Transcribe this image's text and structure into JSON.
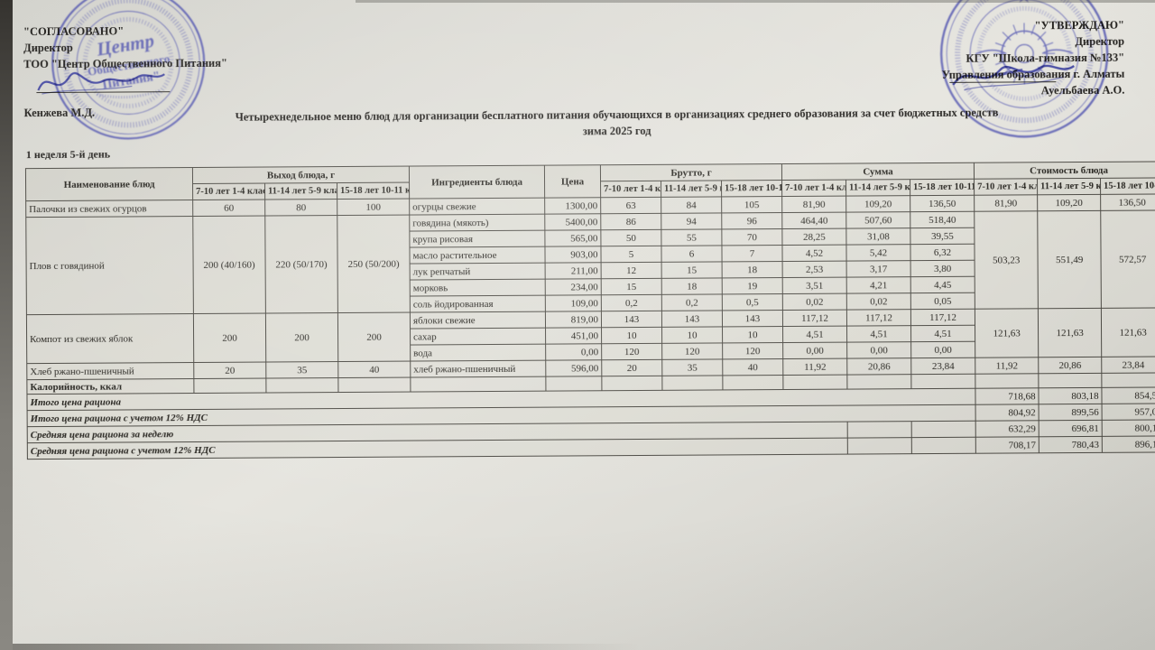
{
  "doc": {
    "left_approval": {
      "approved": "\"СОГЛАСОВАНО\"",
      "role": "Директор",
      "org": "ТОО \"Центр Общественного Питания\"",
      "name": "Кенжева М.Д."
    },
    "right_approval": {
      "approved": "\"УТВЕРЖДАЮ\"",
      "role": "Директор",
      "org": "КГУ \"Школа-гимназия №133\"",
      "org2": "Управления образования г. Алматы",
      "name": "Ауельбаева А.О."
    },
    "title_line1": "Четырехнедельное меню блюд для организации бесплатного питания обучающихся в организациях среднего образования за счет бюджетных средств",
    "title_line2": "зима 2025 год",
    "week_label": "1 неделя 5-й день",
    "stamp_left_lines": [
      "Центр",
      "Общественного",
      "Питания\""
    ]
  },
  "colors": {
    "stamp_blue": "#4347ac",
    "paper": "#e0dfd9",
    "text": "#26241f"
  },
  "table": {
    "header": {
      "col_dish": "Наименование блюд",
      "col_output": "Выход блюда, г",
      "col_ingredients": "Ингредиенты блюда",
      "col_price": "Цена",
      "col_brutto": "Брутто, г",
      "col_sum": "Сумма",
      "col_cost": "Стоимость блюда",
      "age_groups": [
        "7-10 лет\n1-4 класс",
        "11-14 лет\n5-9 класс",
        "15-18 лет\n10-11 класс"
      ]
    },
    "rows": [
      {
        "dish": "Палочки из свежих огурцов",
        "output": [
          "60",
          "80",
          "100"
        ],
        "cost": [
          "81,90",
          "109,20",
          "136,50"
        ],
        "ing": [
          {
            "name": "огурцы свежие",
            "price": "1300,00",
            "brutto": [
              "63",
              "84",
              "105"
            ],
            "sum": [
              "81,90",
              "109,20",
              "136,50"
            ]
          }
        ]
      },
      {
        "dish": "Плов с говядиной",
        "output": [
          "200 (40/160)",
          "220 (50/170)",
          "250 (50/200)"
        ],
        "cost": [
          "503,23",
          "551,49",
          "572,57"
        ],
        "ing": [
          {
            "name": "говядина (мякоть)",
            "price": "5400,00",
            "brutto": [
              "86",
              "94",
              "96"
            ],
            "sum": [
              "464,40",
              "507,60",
              "518,40"
            ]
          },
          {
            "name": "крупа рисовая",
            "price": "565,00",
            "brutto": [
              "50",
              "55",
              "70"
            ],
            "sum": [
              "28,25",
              "31,08",
              "39,55"
            ]
          },
          {
            "name": "масло растительное",
            "price": "903,00",
            "brutto": [
              "5",
              "6",
              "7"
            ],
            "sum": [
              "4,52",
              "5,42",
              "6,32"
            ]
          },
          {
            "name": "лук репчатый",
            "price": "211,00",
            "brutto": [
              "12",
              "15",
              "18"
            ],
            "sum": [
              "2,53",
              "3,17",
              "3,80"
            ]
          },
          {
            "name": "морковь",
            "price": "234,00",
            "brutto": [
              "15",
              "18",
              "19"
            ],
            "sum": [
              "3,51",
              "4,21",
              "4,45"
            ]
          },
          {
            "name": "соль йодированная",
            "price": "109,00",
            "brutto": [
              "0,2",
              "0,2",
              "0,5"
            ],
            "sum": [
              "0,02",
              "0,02",
              "0,05"
            ]
          }
        ]
      },
      {
        "dish": "Компот из свежих яблок",
        "output": [
          "200",
          "200",
          "200"
        ],
        "cost": [
          "121,63",
          "121,63",
          "121,63"
        ],
        "ing": [
          {
            "name": "яблоки свежие",
            "price": "819,00",
            "brutto": [
              "143",
              "143",
              "143"
            ],
            "sum": [
              "117,12",
              "117,12",
              "117,12"
            ]
          },
          {
            "name": "сахар",
            "price": "451,00",
            "brutto": [
              "10",
              "10",
              "10"
            ],
            "sum": [
              "4,51",
              "4,51",
              "4,51"
            ]
          },
          {
            "name": "вода",
            "price": "0,00",
            "brutto": [
              "120",
              "120",
              "120"
            ],
            "sum": [
              "0,00",
              "0,00",
              "0,00"
            ]
          }
        ]
      },
      {
        "dish": "Хлеб ржано-пшеничный",
        "output": [
          "20",
          "35",
          "40"
        ],
        "cost": [
          "11,92",
          "20,86",
          "23,84"
        ],
        "ing": [
          {
            "name": "хлеб ржано-пшеничный",
            "price": "596,00",
            "brutto": [
              "20",
              "35",
              "40"
            ],
            "sum": [
              "11,92",
              "20,86",
              "23,84"
            ]
          }
        ]
      },
      {
        "dish": "Калорийность, ккал",
        "bold": true,
        "output": [
          "",
          "",
          ""
        ],
        "cost": [
          "",
          "",
          ""
        ],
        "ing": [
          {
            "name": "",
            "price": "",
            "brutto": [
              "",
              "",
              ""
            ],
            "sum": [
              "",
              "",
              ""
            ]
          }
        ]
      }
    ],
    "summary": [
      {
        "label": "Итого цена рациона",
        "values": [
          "718,68",
          "803,18",
          "854,54"
        ]
      },
      {
        "label": "Итого цена рациона с учетом 12% НДС",
        "values": [
          "804,92",
          "899,56",
          "957,08"
        ]
      },
      {
        "label": "Средняя цена рациона за неделю",
        "values": [
          "632,29",
          "696,81",
          "800,12"
        ]
      },
      {
        "label": "Средняя цена рациона с учетом 12% НДС",
        "values": [
          "708,17",
          "780,43",
          "896,13"
        ]
      }
    ]
  }
}
